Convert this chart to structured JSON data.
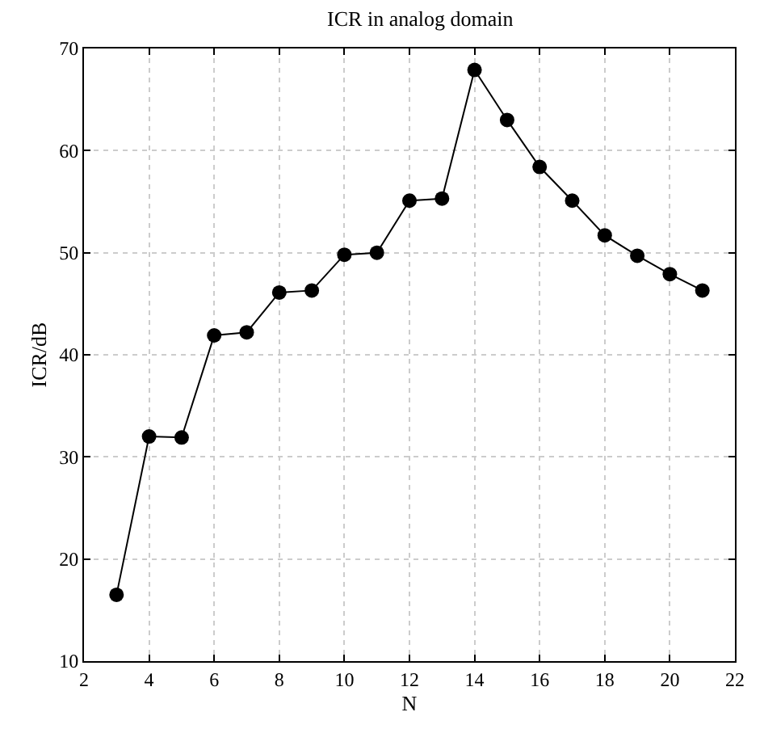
{
  "chart_data": {
    "type": "line",
    "title": "ICR in analog domain",
    "xlabel": "N",
    "ylabel": "ICR/dB",
    "x": [
      3,
      4,
      5,
      6,
      7,
      8,
      9,
      10,
      11,
      12,
      13,
      14,
      15,
      16,
      17,
      18,
      19,
      20,
      21
    ],
    "series": [
      {
        "color": "#000000",
        "values": [
          16.5,
          32.0,
          31.9,
          41.9,
          42.2,
          46.1,
          46.3,
          49.8,
          50.0,
          55.1,
          55.3,
          67.9,
          63.0,
          58.4,
          55.1,
          51.7,
          49.7,
          47.9,
          46.3
        ]
      }
    ],
    "xlim": [
      2,
      22
    ],
    "xticks": [
      2,
      4,
      6,
      8,
      10,
      12,
      14,
      16,
      18,
      20,
      22
    ],
    "ylim": [
      10,
      70
    ],
    "yticks": [
      10,
      20,
      30,
      40,
      50,
      60,
      70
    ],
    "grid": true,
    "marker": "circle",
    "line_style": "solid",
    "legend": false
  }
}
